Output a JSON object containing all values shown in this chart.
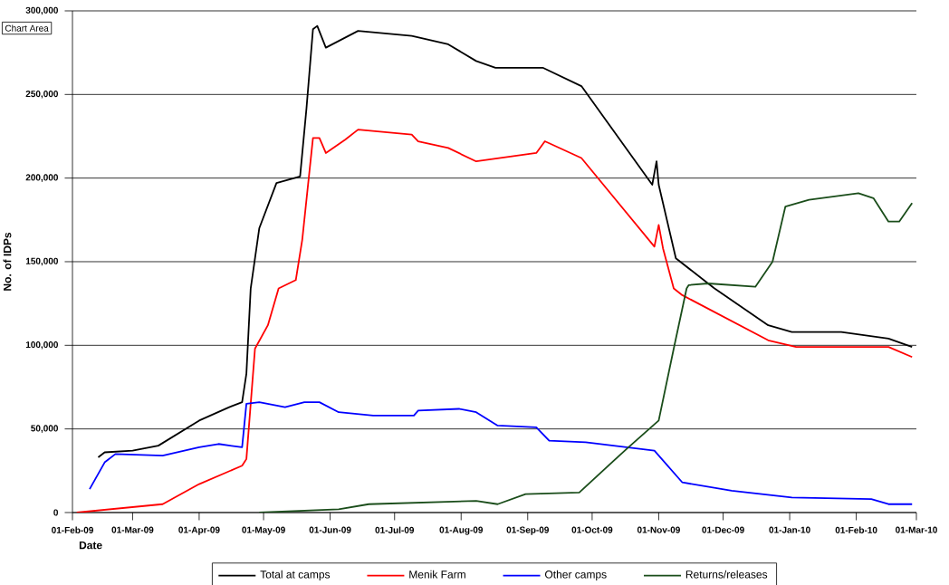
{
  "chart_data": {
    "type": "line",
    "xlabel": "Date",
    "ylabel": "No. of IDPs",
    "annotations": [
      "Chart Area"
    ],
    "xlim": [
      "2009-02-01",
      "2010-03-01"
    ],
    "xticks": [
      {
        "value": "2009-02-01",
        "label": "01-Feb-09"
      },
      {
        "value": "2009-03-01",
        "label": "01-Mar-09"
      },
      {
        "value": "2009-04-01",
        "label": "01-Apr-09"
      },
      {
        "value": "2009-05-01",
        "label": "01-May-09"
      },
      {
        "value": "2009-06-01",
        "label": "01-Jun-09"
      },
      {
        "value": "2009-07-01",
        "label": "01-Jul-09"
      },
      {
        "value": "2009-08-01",
        "label": "01-Aug-09"
      },
      {
        "value": "2009-09-01",
        "label": "01-Sep-09"
      },
      {
        "value": "2009-10-01",
        "label": "01-Oct-09"
      },
      {
        "value": "2009-11-01",
        "label": "01-Nov-09"
      },
      {
        "value": "2009-12-01",
        "label": "01-Dec-09"
      },
      {
        "value": "2010-01-01",
        "label": "01-Jan-10"
      },
      {
        "value": "2010-02-01",
        "label": "01-Feb-10"
      },
      {
        "value": "2010-03-01",
        "label": "01-Mar-10"
      }
    ],
    "ylim": [
      0,
      300000
    ],
    "yticks": [
      0,
      {
        "value": 50000,
        "label": "50,000"
      },
      {
        "value": 100000,
        "label": "100,000"
      },
      {
        "value": 150000,
        "label": "150,000"
      },
      {
        "value": 200000,
        "label": "200,000"
      },
      {
        "value": 250000,
        "label": "250,000"
      },
      {
        "value": 300000,
        "label": "300,000"
      }
    ],
    "grid": "y",
    "legend": "bottom",
    "series": [
      {
        "name": "Total at camps",
        "color": "#000000",
        "x": [
          "2009-02-13",
          "2009-02-16",
          "2009-03-01",
          "2009-03-13",
          "2009-04-01",
          "2009-04-15",
          "2009-04-21",
          "2009-04-23",
          "2009-04-25",
          "2009-04-29",
          "2009-05-07",
          "2009-05-18",
          "2009-05-21",
          "2009-05-24",
          "2009-05-26",
          "2009-05-30",
          "2009-06-14",
          "2009-07-09",
          "2009-07-26",
          "2009-08-08",
          "2009-08-17",
          "2009-09-08",
          "2009-09-26",
          "2009-10-29",
          "2009-10-31",
          "2009-11-01",
          "2009-11-09",
          "2009-11-24",
          "2009-11-27",
          "2009-12-22",
          "2010-01-02",
          "2010-01-25",
          "2010-02-16",
          "2010-02-27"
        ],
        "values": [
          33000,
          36000,
          37000,
          40000,
          55000,
          63000,
          66000,
          83000,
          134000,
          170000,
          197000,
          201000,
          242000,
          289000,
          291000,
          278000,
          288000,
          285000,
          280000,
          270000,
          266000,
          266000,
          255000,
          196000,
          210000,
          196000,
          152000,
          137000,
          134000,
          112000,
          108000,
          108000,
          104000,
          99000
        ]
      },
      {
        "name": "Menik Farm",
        "color": "#ff0000",
        "x": [
          "2009-02-03",
          "2009-03-15",
          "2009-04-01",
          "2009-04-21",
          "2009-04-23",
          "2009-04-27",
          "2009-05-03",
          "2009-05-08",
          "2009-05-16",
          "2009-05-19",
          "2009-05-24",
          "2009-05-27",
          "2009-05-30",
          "2009-06-08",
          "2009-06-14",
          "2009-07-09",
          "2009-07-12",
          "2009-07-26",
          "2009-08-08",
          "2009-09-05",
          "2009-09-09",
          "2009-09-26",
          "2009-10-30",
          "2009-11-01",
          "2009-11-03",
          "2009-11-08",
          "2009-11-12",
          "2009-12-22",
          "2010-01-04",
          "2010-01-25",
          "2010-02-16",
          "2010-02-27"
        ],
        "values": [
          0,
          5000,
          17000,
          28000,
          32000,
          98000,
          112000,
          134000,
          139000,
          163000,
          224000,
          224000,
          215000,
          223000,
          229000,
          226000,
          222000,
          218000,
          210000,
          215000,
          222000,
          212000,
          159000,
          172000,
          158000,
          134000,
          130000,
          103000,
          99000,
          99000,
          99000,
          93000
        ]
      },
      {
        "name": "Other camps",
        "color": "#0000ff",
        "x": [
          "2009-02-09",
          "2009-02-16",
          "2009-02-21",
          "2009-03-15",
          "2009-04-01",
          "2009-04-10",
          "2009-04-21",
          "2009-04-23",
          "2009-04-29",
          "2009-05-11",
          "2009-05-20",
          "2009-05-27",
          "2009-06-05",
          "2009-06-21",
          "2009-07-10",
          "2009-07-12",
          "2009-07-31",
          "2009-08-08",
          "2009-08-18",
          "2009-09-05",
          "2009-09-11",
          "2009-09-28",
          "2009-10-30",
          "2009-11-12",
          "2009-12-05",
          "2010-01-02",
          "2010-02-08",
          "2010-02-16",
          "2010-02-27"
        ],
        "values": [
          14000,
          30000,
          35000,
          34000,
          39000,
          41000,
          39000,
          65000,
          66000,
          63000,
          66000,
          66000,
          60000,
          58000,
          58000,
          61000,
          62000,
          60000,
          52000,
          51000,
          43000,
          42000,
          37000,
          18000,
          13000,
          9000,
          8000,
          5000,
          5000
        ]
      },
      {
        "name": "Returns/releases",
        "color": "#1a4d1a",
        "x": [
          "2009-04-29",
          "2009-06-05",
          "2009-06-19",
          "2009-08-08",
          "2009-08-18",
          "2009-08-31",
          "2009-09-25",
          "2009-10-17",
          "2009-11-01",
          "2009-11-08",
          "2009-11-14",
          "2009-11-15",
          "2009-11-24",
          "2009-12-16",
          "2009-12-24",
          "2009-12-30",
          "2010-01-10",
          "2010-02-02",
          "2010-02-09",
          "2010-02-16",
          "2010-02-21",
          "2010-02-27"
        ],
        "values": [
          0,
          2000,
          5000,
          7000,
          5000,
          11000,
          12000,
          38000,
          55000,
          98000,
          134000,
          136000,
          137000,
          135000,
          150000,
          183000,
          187000,
          191000,
          188000,
          174000,
          174000,
          185000
        ]
      }
    ]
  }
}
